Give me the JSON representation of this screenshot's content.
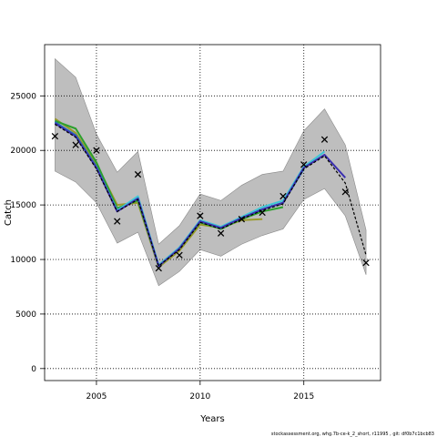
{
  "chart_data": {
    "type": "line",
    "xlabel": "Years",
    "ylabel": "Catch",
    "footnote": "stockassessment.org, whg.7b-ce-k_2_short, r11995 , git: df0b7c1bcb83",
    "xlim": [
      2002.5,
      2018.7
    ],
    "ylim": [
      -1100,
      29700
    ],
    "xticks": [
      2005,
      2010,
      2015
    ],
    "yticks": [
      0,
      5000,
      10000,
      15000,
      20000,
      25000
    ],
    "grid": true,
    "confidence_band": {
      "x": [
        2003,
        2004,
        2005,
        2006,
        2007,
        2008,
        2009,
        2010,
        2011,
        2012,
        2013,
        2014,
        2015,
        2016,
        2017,
        2018
      ],
      "upper": [
        28400,
        26700,
        21500,
        18000,
        19900,
        11400,
        13100,
        16000,
        15400,
        16800,
        17800,
        18100,
        21800,
        23800,
        20500,
        12700
      ],
      "lower": [
        18100,
        17100,
        15200,
        11500,
        12500,
        7600,
        8900,
        10900,
        10300,
        11400,
        12200,
        12800,
        15500,
        16500,
        14000,
        8600
      ],
      "color": "#bebebe"
    },
    "observed": {
      "marker": "x",
      "x": [
        2003,
        2004,
        2005,
        2006,
        2007,
        2008,
        2009,
        2010,
        2011,
        2012,
        2013,
        2014,
        2015,
        2016,
        2017,
        2018
      ],
      "y": [
        21300,
        20500,
        20000,
        13500,
        17800,
        9200,
        10400,
        14000,
        12400,
        13700,
        14300,
        15800,
        18700,
        21000,
        16200,
        9700
      ]
    },
    "series": [
      {
        "color": "#9a9a2a",
        "x": [
          2003,
          2004,
          2005,
          2006,
          2007,
          2008,
          2009,
          2010,
          2011,
          2012,
          2013
        ],
        "y": [
          22900,
          21600,
          18700,
          15000,
          15200,
          9300,
          10800,
          13200,
          12900,
          13600,
          13700
        ]
      },
      {
        "color": "#2ca02c",
        "x": [
          2003,
          2004,
          2005,
          2006,
          2007,
          2008,
          2009,
          2010,
          2011,
          2012,
          2013,
          2014
        ],
        "y": [
          22700,
          22000,
          18900,
          14700,
          15400,
          9400,
          11000,
          13400,
          12800,
          13700,
          14400,
          14800
        ]
      },
      {
        "color": "#1f77b4",
        "x": [
          2003,
          2004,
          2005,
          2006,
          2007,
          2008,
          2009,
          2010,
          2011,
          2012,
          2013,
          2014,
          2015
        ],
        "y": [
          22600,
          21400,
          18500,
          14500,
          15600,
          9400,
          11100,
          13500,
          12900,
          13800,
          14600,
          15200,
          18300
        ]
      },
      {
        "color": "#3ec6d6",
        "x": [
          2003,
          2004,
          2005,
          2006,
          2007,
          2008,
          2009,
          2010,
          2011,
          2012,
          2013,
          2014,
          2015,
          2016
        ],
        "y": [
          22500,
          21300,
          18400,
          14500,
          15800,
          9500,
          11100,
          13600,
          13000,
          13900,
          14800,
          15400,
          18500,
          19900
        ]
      },
      {
        "color": "#3b2fb0",
        "x": [
          2003,
          2004,
          2005,
          2006,
          2007,
          2008,
          2009,
          2010,
          2011,
          2012,
          2013,
          2014,
          2015,
          2016,
          2017
        ],
        "y": [
          22500,
          21300,
          18400,
          14400,
          15600,
          9400,
          11000,
          13500,
          12900,
          13800,
          14600,
          15200,
          18400,
          19600,
          17500
        ]
      },
      {
        "color": "#000000",
        "dashed": true,
        "x": [
          2003,
          2004,
          2005,
          2006,
          2007,
          2008,
          2009,
          2010,
          2011,
          2012,
          2013,
          2014,
          2015,
          2016,
          2017,
          2018
        ],
        "y": [
          22400,
          21200,
          18300,
          14400,
          15500,
          9400,
          10900,
          13400,
          12800,
          13700,
          14500,
          15100,
          18300,
          19500,
          17000,
          10400
        ]
      }
    ]
  }
}
